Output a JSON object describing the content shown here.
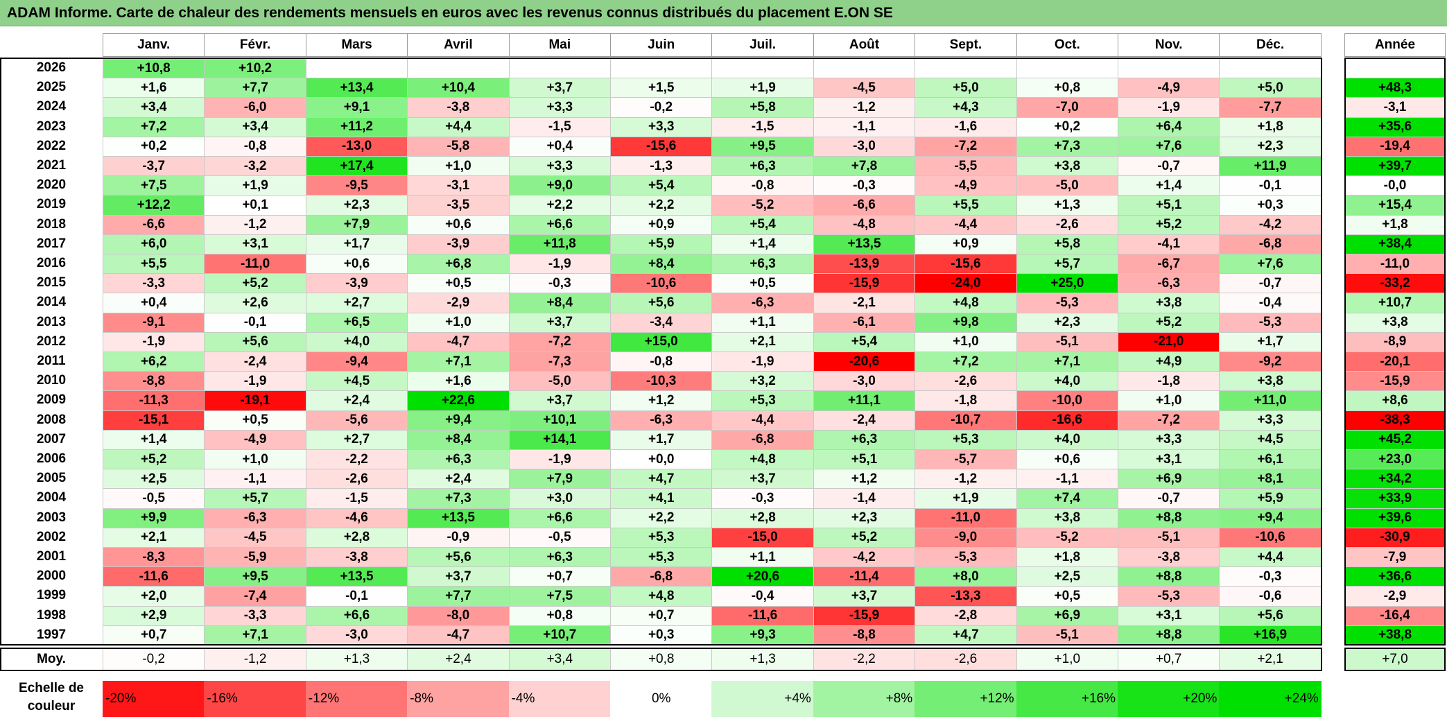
{
  "title": "ADAM Informe. Carte de chaleur des rendements mensuels en euros avec les revenus connus distribués du placement E.ON SE",
  "chart_data": {
    "type": "heatmap",
    "title": "ADAM Informe. Carte de chaleur des rendements mensuels en euros avec les revenus connus distribués du placement E.ON SE",
    "months": [
      "Janv.",
      "Févr.",
      "Mars",
      "Avril",
      "Mai",
      "Juin",
      "Juil.",
      "Août",
      "Sept.",
      "Oct.",
      "Nov.",
      "Déc."
    ],
    "annual_header": "Année",
    "rows": [
      {
        "year": "2026",
        "values": [
          "+10,8",
          "+10,2",
          "",
          "",
          "",
          "",
          "",
          "",
          "",
          "",
          "",
          ""
        ],
        "annual": ""
      },
      {
        "year": "2025",
        "values": [
          "+1,6",
          "+7,7",
          "+13,4",
          "+10,4",
          "+3,7",
          "+1,5",
          "+1,9",
          "-4,5",
          "+5,0",
          "+0,8",
          "-4,9",
          "+5,0"
        ],
        "annual": "+48,3"
      },
      {
        "year": "2024",
        "values": [
          "+3,4",
          "-6,0",
          "+9,1",
          "-3,8",
          "+3,3",
          "-0,2",
          "+5,8",
          "-1,2",
          "+4,3",
          "-7,0",
          "-1,9",
          "-7,7"
        ],
        "annual": "-3,1"
      },
      {
        "year": "2023",
        "values": [
          "+7,2",
          "+3,4",
          "+11,2",
          "+4,4",
          "-1,5",
          "+3,3",
          "-1,5",
          "-1,1",
          "-1,6",
          "+0,2",
          "+6,4",
          "+1,8"
        ],
        "annual": "+35,6"
      },
      {
        "year": "2022",
        "values": [
          "+0,2",
          "-0,8",
          "-13,0",
          "-5,8",
          "+0,4",
          "-15,6",
          "+9,5",
          "-3,0",
          "-7,2",
          "+7,3",
          "+7,6",
          "+2,3"
        ],
        "annual": "-19,4"
      },
      {
        "year": "2021",
        "values": [
          "-3,7",
          "-3,2",
          "+17,4",
          "+1,0",
          "+3,3",
          "-1,3",
          "+6,3",
          "+7,8",
          "-5,5",
          "+3,8",
          "-0,7",
          "+11,9"
        ],
        "annual": "+39,7"
      },
      {
        "year": "2020",
        "values": [
          "+7,5",
          "+1,9",
          "-9,5",
          "-3,1",
          "+9,0",
          "+5,4",
          "-0,8",
          "-0,3",
          "-4,9",
          "-5,0",
          "+1,4",
          "-0,1"
        ],
        "annual": "-0,0"
      },
      {
        "year": "2019",
        "values": [
          "+12,2",
          "+0,1",
          "+2,3",
          "-3,5",
          "+2,2",
          "+2,2",
          "-5,2",
          "-6,6",
          "+5,5",
          "+1,3",
          "+5,1",
          "+0,3"
        ],
        "annual": "+15,4"
      },
      {
        "year": "2018",
        "values": [
          "-6,6",
          "-1,2",
          "+7,9",
          "+0,6",
          "+6,6",
          "+0,9",
          "+5,4",
          "-4,8",
          "-4,4",
          "-2,6",
          "+5,2",
          "-4,2"
        ],
        "annual": "+1,8"
      },
      {
        "year": "2017",
        "values": [
          "+6,0",
          "+3,1",
          "+1,7",
          "-3,9",
          "+11,8",
          "+5,9",
          "+1,4",
          "+13,5",
          "+0,9",
          "+5,8",
          "-4,1",
          "-6,8"
        ],
        "annual": "+38,4"
      },
      {
        "year": "2016",
        "values": [
          "+5,5",
          "-11,0",
          "+0,6",
          "+6,8",
          "-1,9",
          "+8,4",
          "+6,3",
          "-13,9",
          "-15,6",
          "+5,7",
          "-6,7",
          "+7,6"
        ],
        "annual": "-11,0"
      },
      {
        "year": "2015",
        "values": [
          "-3,3",
          "+5,2",
          "-3,9",
          "+0,5",
          "-0,3",
          "-10,6",
          "+0,5",
          "-15,9",
          "-24,0",
          "+25,0",
          "-6,3",
          "-0,7"
        ],
        "annual": "-33,2"
      },
      {
        "year": "2014",
        "values": [
          "+0,4",
          "+2,6",
          "+2,7",
          "-2,9",
          "+8,4",
          "+5,6",
          "-6,3",
          "-2,1",
          "+4,8",
          "-5,3",
          "+3,8",
          "-0,4"
        ],
        "annual": "+10,7"
      },
      {
        "year": "2013",
        "values": [
          "-9,1",
          "-0,1",
          "+6,5",
          "+1,0",
          "+3,7",
          "-3,4",
          "+1,1",
          "-6,1",
          "+9,8",
          "+2,3",
          "+5,2",
          "-5,3"
        ],
        "annual": "+3,8"
      },
      {
        "year": "2012",
        "values": [
          "-1,9",
          "+5,6",
          "+4,0",
          "-4,7",
          "-7,2",
          "+15,0",
          "+2,1",
          "+5,4",
          "+1,0",
          "-5,1",
          "-21,0",
          "+1,7"
        ],
        "annual": "-8,9"
      },
      {
        "year": "2011",
        "values": [
          "+6,2",
          "-2,4",
          "-9,4",
          "+7,1",
          "-7,3",
          "-0,8",
          "-1,9",
          "-20,6",
          "+7,2",
          "+7,1",
          "+4,9",
          "-9,2"
        ],
        "annual": "-20,1"
      },
      {
        "year": "2010",
        "values": [
          "-8,8",
          "-1,9",
          "+4,5",
          "+1,6",
          "-5,0",
          "-10,3",
          "+3,2",
          "-3,0",
          "-2,6",
          "+4,0",
          "-1,8",
          "+3,8"
        ],
        "annual": "-15,9"
      },
      {
        "year": "2009",
        "values": [
          "-11,3",
          "-19,1",
          "+2,4",
          "+22,6",
          "+3,7",
          "+1,2",
          "+5,3",
          "+11,1",
          "-1,8",
          "-10,0",
          "+1,0",
          "+11,0"
        ],
        "annual": "+8,6"
      },
      {
        "year": "2008",
        "values": [
          "-15,1",
          "+0,5",
          "-5,6",
          "+9,4",
          "+10,1",
          "-6,3",
          "-4,4",
          "-2,4",
          "-10,7",
          "-16,6",
          "-7,2",
          "+3,3"
        ],
        "annual": "-38,3"
      },
      {
        "year": "2007",
        "values": [
          "+1,4",
          "-4,9",
          "+2,7",
          "+8,4",
          "+14,1",
          "+1,7",
          "-6,8",
          "+6,3",
          "+5,3",
          "+4,0",
          "+3,3",
          "+4,5"
        ],
        "annual": "+45,2"
      },
      {
        "year": "2006",
        "values": [
          "+5,2",
          "+1,0",
          "-2,2",
          "+6,3",
          "-1,9",
          "+0,0",
          "+4,8",
          "+5,1",
          "-5,7",
          "+0,6",
          "+3,1",
          "+6,1"
        ],
        "annual": "+23,0"
      },
      {
        "year": "2005",
        "values": [
          "+2,5",
          "-1,1",
          "-2,6",
          "+2,4",
          "+7,9",
          "+4,7",
          "+3,7",
          "+1,2",
          "-1,2",
          "-1,1",
          "+6,9",
          "+8,1"
        ],
        "annual": "+34,2"
      },
      {
        "year": "2004",
        "values": [
          "-0,5",
          "+5,7",
          "-1,5",
          "+7,3",
          "+3,0",
          "+4,1",
          "-0,3",
          "-1,4",
          "+1,9",
          "+7,4",
          "-0,7",
          "+5,9"
        ],
        "annual": "+33,9"
      },
      {
        "year": "2003",
        "values": [
          "+9,9",
          "-6,3",
          "-4,6",
          "+13,5",
          "+6,6",
          "+2,2",
          "+2,8",
          "+2,3",
          "-11,0",
          "+3,8",
          "+8,8",
          "+9,4"
        ],
        "annual": "+39,6"
      },
      {
        "year": "2002",
        "values": [
          "+2,1",
          "-4,5",
          "+2,8",
          "-0,9",
          "-0,5",
          "+5,3",
          "-15,0",
          "+5,2",
          "-9,0",
          "-5,2",
          "-5,1",
          "-10,6"
        ],
        "annual": "-30,9"
      },
      {
        "year": "2001",
        "values": [
          "-8,3",
          "-5,9",
          "-3,8",
          "+5,6",
          "+6,3",
          "+5,3",
          "+1,1",
          "-4,2",
          "-5,3",
          "+1,8",
          "-3,8",
          "+4,4"
        ],
        "annual": "-7,9"
      },
      {
        "year": "2000",
        "values": [
          "-11,6",
          "+9,5",
          "+13,5",
          "+3,7",
          "+0,7",
          "-6,8",
          "+20,6",
          "-11,4",
          "+8,0",
          "+2,5",
          "+8,8",
          "-0,3"
        ],
        "annual": "+36,6"
      },
      {
        "year": "1999",
        "values": [
          "+2,0",
          "-7,4",
          "-0,1",
          "+7,7",
          "+7,5",
          "+4,8",
          "-0,4",
          "+3,7",
          "-13,3",
          "+0,5",
          "-5,3",
          "-0,6"
        ],
        "annual": "-2,9"
      },
      {
        "year": "1998",
        "values": [
          "+2,9",
          "-3,3",
          "+6,6",
          "-8,0",
          "+0,8",
          "+0,7",
          "-11,6",
          "-15,9",
          "-2,8",
          "+6,9",
          "+3,1",
          "+5,6"
        ],
        "annual": "-16,4"
      },
      {
        "year": "1997",
        "values": [
          "+0,7",
          "+7,1",
          "-3,0",
          "-4,7",
          "+10,7",
          "+0,3",
          "+9,3",
          "-8,8",
          "+4,7",
          "-5,1",
          "+8,8",
          "+16,9"
        ],
        "annual": "+38,8"
      }
    ],
    "average": {
      "label": "Moy.",
      "values": [
        "-0,2",
        "-1,2",
        "+1,3",
        "+2,4",
        "+3,4",
        "+0,8",
        "+1,3",
        "-2,2",
        "-2,6",
        "+1,0",
        "+0,7",
        "+2,1"
      ],
      "annual": "+7,0"
    },
    "scale": {
      "label_line1": "Echelle de",
      "label_line2": "couleur",
      "items": [
        "-20%",
        "-16%",
        "-12%",
        "-8%",
        "-4%",
        "0%",
        "+4%",
        "+8%",
        "+12%",
        "+16%",
        "+20%",
        "+24%"
      ],
      "values": [
        -20,
        -16,
        -12,
        -8,
        -4,
        0,
        4,
        8,
        12,
        16,
        20,
        24
      ]
    },
    "colors": {
      "negative": "#ff0000",
      "positive": "#00e000",
      "neutral": "#ffffff"
    }
  }
}
